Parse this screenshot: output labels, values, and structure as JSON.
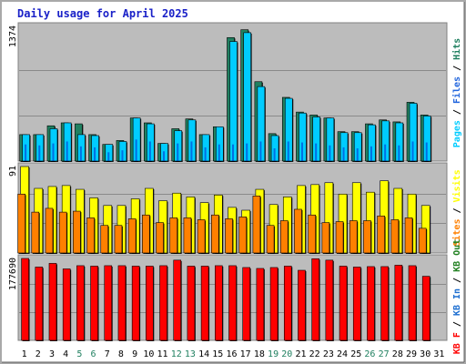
{
  "title": "Daily usage for April 2025",
  "colors": {
    "background": "#bcbcbc",
    "frame": "#a9a9a9",
    "title": "#1a21c8",
    "pages": "#00ccff",
    "pages_dark": "#0000c0",
    "files": "#2266dd",
    "hits": "#208060",
    "visits": "#ffff00",
    "sites": "#ff8000",
    "kb_out": "#208020",
    "kb_in": "#1c6ed0",
    "kb_f": "#ff0000",
    "weekend_label": "#208060"
  },
  "chart_data": [
    {
      "type": "bar",
      "panel": "top",
      "axis_max_label": "1374",
      "ylim": [
        0,
        1374
      ],
      "legend": [
        "Pages",
        "Files",
        "Hits"
      ],
      "series": [
        {
          "name": "Hits",
          "values": [
            270,
            270,
            360,
            390,
            380,
            270,
            170,
            210,
            440,
            390,
            180,
            330,
            430,
            270,
            350,
            1260,
            1340,
            810,
            280,
            650,
            500,
            470,
            440,
            300,
            300,
            380,
            420,
            400,
            600,
            470
          ]
        },
        {
          "name": "Files",
          "values": [
            270,
            270,
            330,
            390,
            270,
            260,
            170,
            200,
            440,
            380,
            180,
            310,
            420,
            270,
            350,
            1220,
            1310,
            760,
            260,
            640,
            490,
            450,
            440,
            290,
            290,
            370,
            410,
            390,
            590,
            460
          ]
        },
        {
          "name": "Pages",
          "values": [
            170,
            160,
            180,
            200,
            150,
            140,
            90,
            110,
            220,
            200,
            100,
            180,
            200,
            140,
            170,
            170,
            180,
            200,
            130,
            200,
            190,
            180,
            160,
            140,
            130,
            150,
            170,
            160,
            200,
            190
          ]
        }
      ]
    },
    {
      "type": "bar",
      "panel": "middle",
      "axis_max_label": "91",
      "ylim": [
        0,
        91
      ],
      "legend": [
        "Sites",
        "Visits"
      ],
      "series": [
        {
          "name": "Visits",
          "values": [
            91,
            68,
            70,
            71,
            67,
            58,
            50,
            50,
            57,
            68,
            55,
            63,
            59,
            53,
            61,
            48,
            45,
            67,
            51,
            59,
            71,
            72,
            74,
            62,
            74,
            64,
            76,
            68,
            62,
            50
          ]
        },
        {
          "name": "Sites",
          "values": [
            62,
            43,
            47,
            43,
            44,
            37,
            29,
            29,
            36,
            40,
            32,
            37,
            37,
            35,
            40,
            36,
            38,
            60,
            29,
            34,
            46,
            40,
            32,
            33,
            34,
            34,
            39,
            35,
            37,
            26
          ]
        }
      ]
    },
    {
      "type": "bar",
      "panel": "bottom",
      "axis_max_label": "177690",
      "ylim": [
        0,
        177690
      ],
      "legend": [
        "KB F",
        "KB In",
        "KB Out"
      ],
      "series": [
        {
          "name": "KB F",
          "values": [
            177690,
            159000,
            167000,
            155000,
            162000,
            161000,
            162000,
            162000,
            161000,
            161000,
            162000,
            174000,
            161000,
            161000,
            162000,
            162000,
            158000,
            156000,
            158000,
            161000,
            152000,
            177000,
            174000,
            161000,
            159000,
            160000,
            160000,
            163000,
            162000,
            139000
          ]
        }
      ]
    }
  ],
  "days": [
    "1",
    "2",
    "3",
    "4",
    "5",
    "6",
    "7",
    "8",
    "9",
    "10",
    "11",
    "12",
    "13",
    "14",
    "15",
    "16",
    "17",
    "18",
    "19",
    "20",
    "21",
    "22",
    "23",
    "24",
    "25",
    "26",
    "27",
    "28",
    "29",
    "30",
    "31"
  ],
  "weekend_days": [
    5,
    6,
    12,
    13,
    19,
    20,
    26,
    27
  ]
}
